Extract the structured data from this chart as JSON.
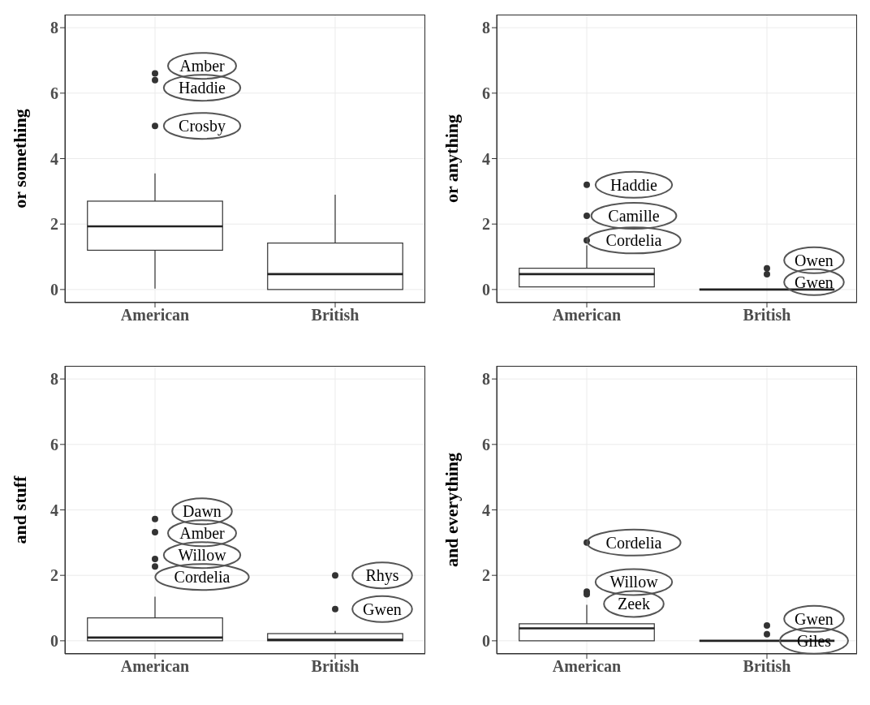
{
  "chart_data": [
    {
      "type": "box",
      "ylabel": "or something",
      "categories": [
        "American",
        "British"
      ],
      "ylim": [
        -0.4,
        8.4
      ],
      "yticks": [
        0,
        2,
        4,
        6,
        8
      ],
      "grid": true,
      "boxes": [
        {
          "low": 0.03,
          "q1": 1.2,
          "median": 1.93,
          "q3": 2.7,
          "high": 3.55,
          "outliers": [
            6.6,
            6.4,
            5.0
          ]
        },
        {
          "low": 0,
          "q1": 0,
          "median": 0.47,
          "q3": 1.42,
          "high": 2.9
        }
      ],
      "annotations": [
        "Amber",
        "Haddie",
        "Crosby"
      ]
    },
    {
      "type": "box",
      "ylabel": "or anything",
      "categories": [
        "American",
        "British"
      ],
      "ylim": [
        -0.4,
        8.4
      ],
      "yticks": [
        0,
        2,
        4,
        6,
        8
      ],
      "grid": true,
      "boxes": [
        {
          "low": 0.08,
          "q1": 0.08,
          "median": 0.47,
          "q3": 0.65,
          "high": 1.35,
          "outliers": [
            3.2,
            2.25,
            1.5
          ]
        },
        {
          "low": 0,
          "q1": 0,
          "median": 0,
          "q3": 0,
          "high": 0,
          "outliers": [
            0.65,
            0.47
          ]
        }
      ],
      "annotations": [
        "Haddie",
        "Camille",
        "Cordelia",
        "Owen",
        "Gwen"
      ]
    },
    {
      "type": "box",
      "ylabel": "and stuff",
      "categories": [
        "American",
        "British"
      ],
      "ylim": [
        -0.4,
        8.4
      ],
      "yticks": [
        0,
        2,
        4,
        6,
        8
      ],
      "grid": true,
      "boxes": [
        {
          "low": 0,
          "q1": 0,
          "median": 0.1,
          "q3": 0.7,
          "high": 1.35,
          "outliers": [
            3.72,
            3.32,
            2.5,
            2.27
          ]
        },
        {
          "low": 0,
          "q1": 0,
          "median": 0.03,
          "q3": 0.22,
          "high": 0.3,
          "outliers": [
            2.0,
            0.97
          ]
        }
      ],
      "annotations": [
        "Dawn",
        "Amber",
        "Willow",
        "Cordelia",
        "Rhys",
        "Gwen"
      ]
    },
    {
      "type": "box",
      "ylabel": "and everything",
      "categories": [
        "American",
        "British"
      ],
      "ylim": [
        -0.4,
        8.4
      ],
      "yticks": [
        0,
        2,
        4,
        6,
        8
      ],
      "grid": true,
      "boxes": [
        {
          "low": 0,
          "q1": 0,
          "median": 0.38,
          "q3": 0.52,
          "high": 1.1,
          "outliers": [
            3.0,
            1.5,
            1.42
          ]
        },
        {
          "low": 0,
          "q1": 0,
          "median": 0,
          "q3": 0,
          "high": 0,
          "outliers": [
            0.47,
            0.2
          ]
        }
      ],
      "annotations": [
        "Cordelia",
        "Willow",
        "Zeek",
        "Gwen",
        "Giles"
      ]
    }
  ]
}
